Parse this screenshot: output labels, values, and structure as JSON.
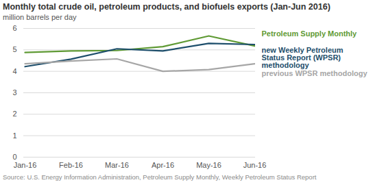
{
  "chart_data": {
    "type": "line",
    "title": "Monthly total crude oil, petroleum products, and biofuels exports (Jan-Jun 2016)",
    "subtitle": "million barrels per day",
    "source": "Source: U.S. Energy Information Administration, Petroleum Supply Monthly, Weekly Petroleum Status Report",
    "categories": [
      "Jan-16",
      "Feb-16",
      "Mar-16",
      "Apr-16",
      "May-16",
      "Jun-16"
    ],
    "series": [
      {
        "name": "Petroleum Supply Monthly",
        "color": "#5f9a34",
        "values": [
          4.88,
          4.95,
          4.97,
          5.15,
          5.65,
          5.18
        ]
      },
      {
        "name": "new Weekly Petroleum Status Report (WPSR) methodology",
        "color": "#1d4e6b",
        "values": [
          4.22,
          4.57,
          5.05,
          4.95,
          5.3,
          5.25
        ]
      },
      {
        "name": "previous WPSR methodology",
        "color": "#a6a6a6",
        "values": [
          4.35,
          4.48,
          4.58,
          4.0,
          4.08,
          4.35
        ]
      }
    ],
    "ylim": [
      0,
      6
    ],
    "yticks": [
      0,
      1,
      2,
      3,
      4,
      5,
      6
    ],
    "grid": true,
    "legend": "right"
  }
}
